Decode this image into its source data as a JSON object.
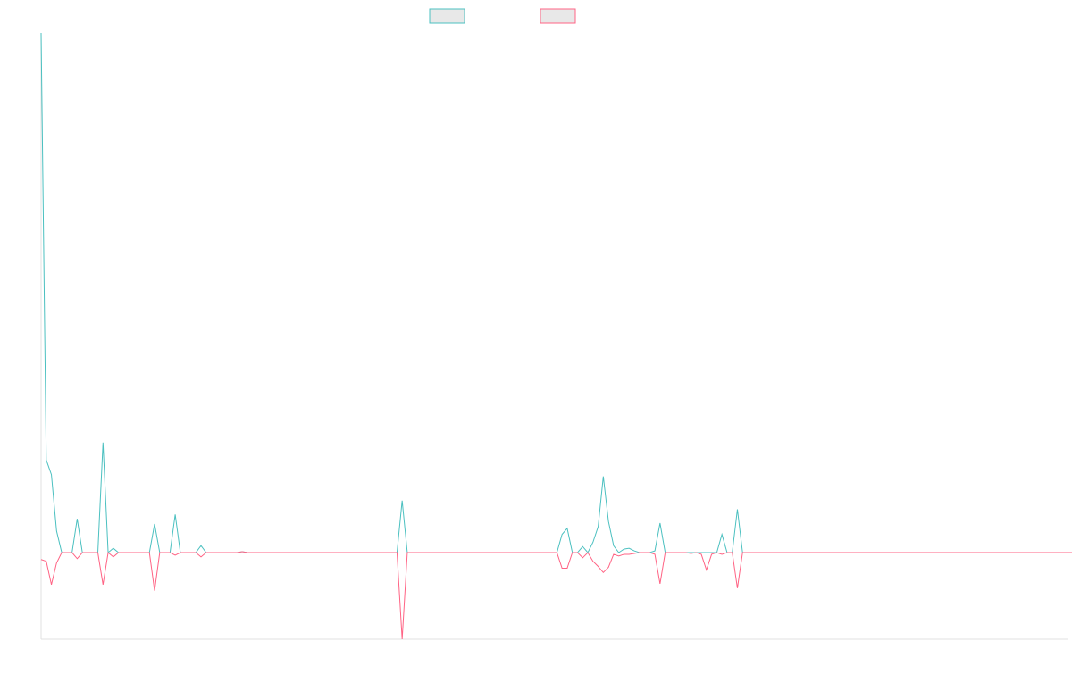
{
  "chart_data": {
    "type": "line",
    "title": "",
    "xlabel": "",
    "ylabel": "",
    "grid": false,
    "legend": {
      "position": "top-center",
      "labels_visible": false
    },
    "x_count": 200,
    "ylim": [
      -1,
      6
    ],
    "series": [
      {
        "color": "#4bc0c0",
        "legend_fill": "#e8e8e8",
        "values": [
          6.0,
          1.07,
          0.9,
          0.25,
          0.0,
          0.0,
          0.0,
          0.39,
          0.0,
          0.0,
          0.0,
          0.0,
          1.27,
          0.0,
          0.05,
          0.0,
          0.0,
          0.0,
          0.0,
          0.0,
          0.0,
          0.0,
          0.33,
          0.0,
          0.0,
          0.0,
          0.44,
          0.0,
          0.0,
          0.0,
          0.0,
          0.08,
          0.0,
          0.0,
          0.0,
          0.0,
          0.0,
          0.0,
          0.0,
          0.01,
          0.0,
          0.0,
          0.0,
          0.0,
          0.0,
          0.0,
          0.0,
          0.0,
          0.0,
          0.0,
          0.0,
          0.0,
          0.0,
          0.0,
          0.0,
          0.0,
          0.0,
          0.0,
          0.0,
          0.0,
          0.0,
          0.0,
          0.0,
          0.0,
          0.0,
          0.0,
          0.0,
          0.0,
          0.0,
          0.0,
          0.6,
          0.0,
          0.0,
          0.0,
          0.0,
          0.0,
          0.0,
          0.0,
          0.0,
          0.0,
          0.0,
          0.0,
          0.0,
          0.0,
          0.0,
          0.0,
          0.0,
          0.0,
          0.0,
          0.0,
          0.0,
          0.0,
          0.0,
          0.0,
          0.0,
          0.0,
          0.0,
          0.0,
          0.0,
          0.0,
          0.0,
          0.21,
          0.28,
          0.0,
          0.0,
          0.07,
          0.0,
          0.12,
          0.3,
          0.88,
          0.36,
          0.08,
          0.0,
          0.04,
          0.05,
          0.02,
          0.0,
          0.0,
          0.0,
          0.02,
          0.34,
          0.0,
          0.0,
          0.0,
          0.0,
          0.0,
          0.0,
          0.0,
          0.0,
          0.0,
          0.0,
          0.0,
          0.21,
          0.0,
          0.0,
          0.5,
          0.0,
          0.0,
          0.0,
          0.0,
          0.0,
          0.0,
          0.0,
          0.0,
          0.0,
          0.0,
          0.0,
          0.0,
          0.0,
          0.0,
          0.0,
          0.0,
          0.0,
          0.0,
          0.0,
          0.0,
          0.0,
          0.0,
          0.0,
          0.0,
          0.0,
          0.0,
          0.0,
          0.0,
          0.0,
          0.0,
          0.0,
          0.0,
          0.0,
          0.0,
          0.0,
          0.0,
          0.0,
          0.0,
          0.0,
          0.0,
          0.0,
          0.0,
          0.0,
          0.0,
          0.0,
          0.0,
          0.0,
          0.0,
          0.0,
          0.0,
          0.0,
          0.0,
          0.0,
          0.0,
          0.0,
          0.0,
          0.0,
          0.0,
          0.0,
          0.0,
          0.0,
          0.0,
          0.0,
          0.0,
          0.0,
          0.0
        ]
      },
      {
        "color": "#ff6384",
        "legend_fill": "#e8e8e8",
        "values": [
          -0.08,
          -0.1,
          -0.37,
          -0.12,
          0.0,
          0.0,
          0.0,
          -0.07,
          0.0,
          0.0,
          0.0,
          0.0,
          -0.37,
          0.0,
          -0.05,
          0.0,
          0.0,
          0.0,
          0.0,
          0.0,
          0.0,
          0.0,
          -0.44,
          0.0,
          0.0,
          0.0,
          -0.03,
          0.0,
          0.0,
          0.0,
          0.0,
          -0.05,
          0.0,
          0.0,
          0.0,
          0.0,
          0.0,
          0.0,
          0.0,
          0.01,
          0.0,
          0.0,
          0.0,
          0.0,
          0.0,
          0.0,
          0.0,
          0.0,
          0.0,
          0.0,
          0.0,
          0.0,
          0.0,
          0.0,
          0.0,
          0.0,
          0.0,
          0.0,
          0.0,
          0.0,
          0.0,
          0.0,
          0.0,
          0.0,
          0.0,
          0.0,
          0.0,
          0.0,
          0.0,
          0.0,
          -1.0,
          0.0,
          0.0,
          0.0,
          0.0,
          0.0,
          0.0,
          0.0,
          0.0,
          0.0,
          0.0,
          0.0,
          0.0,
          0.0,
          0.0,
          0.0,
          0.0,
          0.0,
          0.0,
          0.0,
          0.0,
          0.0,
          0.0,
          0.0,
          0.0,
          0.0,
          0.0,
          0.0,
          0.0,
          0.0,
          0.0,
          -0.18,
          -0.18,
          0.0,
          0.0,
          -0.06,
          0.0,
          -0.1,
          -0.16,
          -0.23,
          -0.17,
          -0.02,
          -0.04,
          -0.02,
          -0.02,
          -0.01,
          0.0,
          0.0,
          0.0,
          -0.02,
          -0.36,
          0.0,
          0.0,
          0.0,
          0.0,
          0.0,
          -0.01,
          0.0,
          -0.02,
          -0.2,
          -0.02,
          0.0,
          -0.02,
          0.0,
          0.0,
          -0.41,
          0.0,
          0.0,
          0.0,
          0.0,
          0.0,
          0.0,
          0.0,
          0.0,
          0.0,
          0.0,
          0.0,
          0.0,
          0.0,
          0.0,
          0.0,
          0.0,
          0.0,
          0.0,
          0.0,
          0.0,
          0.0,
          0.0,
          0.0,
          0.0,
          0.0,
          0.0,
          0.0,
          0.0,
          0.0,
          0.0,
          0.0,
          0.0,
          0.0,
          0.0,
          0.0,
          0.0,
          0.0,
          0.0,
          0.0,
          0.0,
          0.0,
          0.0,
          0.0,
          0.0,
          0.0,
          0.0,
          0.0,
          0.0,
          0.0,
          0.0,
          0.0,
          0.0,
          0.0,
          0.0,
          0.0,
          0.0,
          0.0,
          0.0,
          0.0,
          0.0,
          0.0,
          0.0,
          0.0,
          0.0,
          0.0,
          0.0,
          0.0
        ]
      }
    ]
  }
}
